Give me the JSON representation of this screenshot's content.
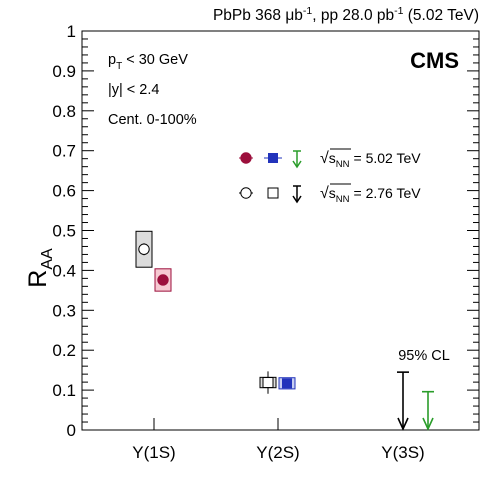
{
  "header": {
    "lumi_pre": "PbPb 368 μb",
    "lumi_sup1": "-1",
    "lumi_mid": ", pp 28.0 pb",
    "lumi_sup2": "-1",
    "lumi_post": " (5.02 TeV)"
  },
  "cms_label": "CMS",
  "selection": {
    "pt": {
      "main": "p",
      "sub": "T",
      "rest": " < 30 GeV"
    },
    "rapidity": "|y| < 2.4",
    "centrality": "Cent. 0-100%"
  },
  "legend": {
    "entries": [
      {
        "name": "√s_NN = 5.02 TeV",
        "energy": "= 5.02 TeV",
        "style": "filled"
      },
      {
        "name": "√s_NN = 2.76 TeV",
        "energy": "= 2.76 TeV",
        "style": "open"
      }
    ],
    "sqrt_symbol": "√",
    "s_label": "s",
    "nn_label": "NN",
    "placement": "upper-right"
  },
  "cl_label": "95% CL",
  "colors": {
    "1S": "#9c0f3c",
    "2S": "#2233bb",
    "3S": "#2a9d2a",
    "old": "#000000",
    "box_1S_fill": "#f6c9d2",
    "box_2S_fill": "#c8cff2",
    "box_old_fill": "#dcdcdc"
  },
  "chart_data": {
    "type": "scatter",
    "categories": [
      "Υ(1S)",
      "Υ(2S)",
      "Υ(3S)"
    ],
    "ylabel": {
      "main": "R",
      "sub": "AA"
    },
    "ylim": [
      0,
      1
    ],
    "yticks": [
      "0",
      "0.1",
      "0.2",
      "0.3",
      "0.4",
      "0.5",
      "0.6",
      "0.7",
      "0.8",
      "0.9",
      "1"
    ],
    "grid": false,
    "series": [
      {
        "name": "√s_NN = 5.02 TeV",
        "points": [
          {
            "category": "Υ(1S)",
            "y": 0.376,
            "syst": 0.028,
            "stat": 0.013
          },
          {
            "category": "Υ(2S)",
            "y": 0.117,
            "syst": 0.014,
            "stat": 0.01
          }
        ],
        "upper_limits": [
          {
            "category": "Υ(3S)",
            "y": 0.096
          }
        ]
      },
      {
        "name": "√s_NN = 2.76 TeV",
        "points": [
          {
            "category": "Υ(1S)",
            "y": 0.453,
            "syst": 0.045,
            "stat": 0.015
          },
          {
            "category": "Υ(2S)",
            "y": 0.119,
            "syst": 0.013,
            "stat": 0.028
          }
        ],
        "upper_limits": [
          {
            "category": "Υ(3S)",
            "y": 0.145
          }
        ]
      }
    ]
  }
}
